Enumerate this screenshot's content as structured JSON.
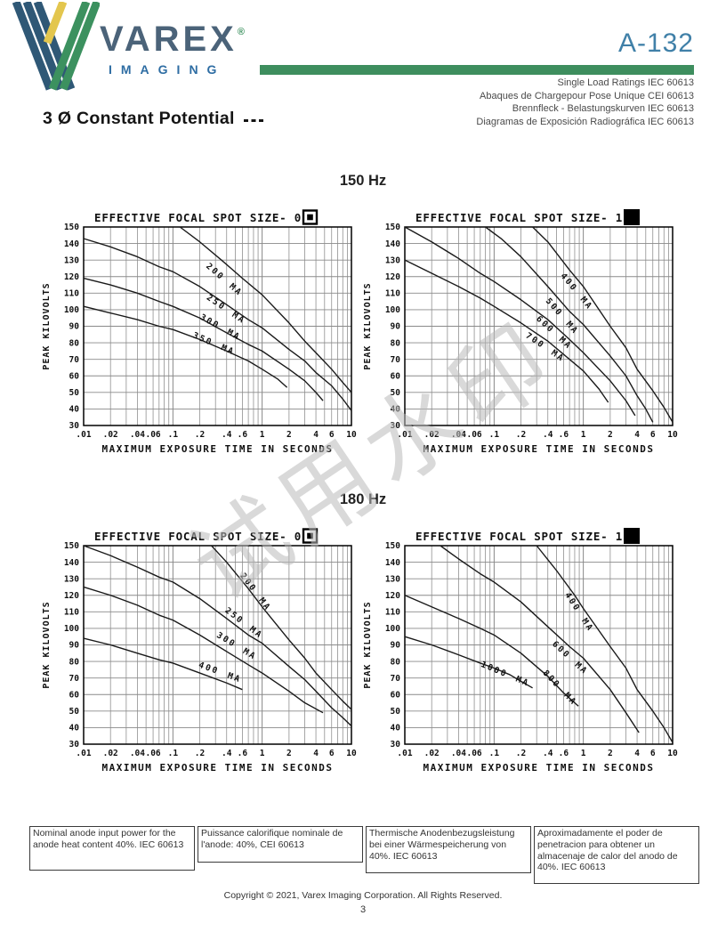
{
  "header": {
    "brand": "VAREX",
    "brand_registered": "®",
    "brand_sub": "IMAGING",
    "doc_number": "A-132",
    "subtitle_lines": [
      "Single Load Ratings IEC 60613",
      "Abaques de Chargepour Pose Unique CEI 60613",
      "Brennfleck - Belastungskurven IEC 60613",
      "Diagramas de Exposición Radiográfica IEC 60613"
    ],
    "colors": {
      "brand_blue": "#4b6379",
      "imaging_blue": "#2e6da3",
      "bar_green": "#3e8e5e",
      "doc_blue": "#4080a8",
      "logo_yellow": "#e3c64e",
      "logo_green": "#3c915f",
      "logo_navy": "#2f5876"
    }
  },
  "heading": {
    "title": "3 Ø  Constant Potential"
  },
  "watermark": {
    "text": "试用水印"
  },
  "sections": {
    "row1": "150 Hz",
    "row2": "180 Hz"
  },
  "chart_shared": {
    "xlabel": "MAXIMUM EXPOSURE TIME IN SECONDS",
    "ylabel": "PEAK KILOVOLTS",
    "xscale": "log",
    "xlim": [
      0.01,
      10
    ],
    "ylim": [
      30,
      150
    ],
    "grid": true,
    "x_tick_labels": [
      ".01",
      ".02",
      ".04",
      ".06",
      ".1",
      ".2",
      ".4",
      ".6",
      "1",
      "2",
      "4",
      "6",
      "10"
    ],
    "x_tick_values": [
      0.01,
      0.02,
      0.04,
      0.06,
      0.1,
      0.2,
      0.4,
      0.6,
      1,
      2,
      4,
      6,
      10
    ],
    "y_ticks": [
      150,
      140,
      130,
      120,
      110,
      100,
      90,
      80,
      70,
      60,
      50,
      40,
      30
    ]
  },
  "chart_data": [
    {
      "type": "line",
      "section": "150 Hz",
      "title": "EFFECTIVE FOCAL SPOT SIZE- 0.6",
      "focal_marker": "small-square",
      "series": [
        {
          "name": "200 MA",
          "label_pos": [
            0.36,
            117
          ],
          "points": [
            [
              0.12,
              150
            ],
            [
              0.2,
              141
            ],
            [
              0.35,
              130
            ],
            [
              0.6,
              119
            ],
            [
              1,
              109
            ],
            [
              2,
              92
            ],
            [
              3,
              81
            ],
            [
              4,
              74
            ],
            [
              6,
              64
            ],
            [
              8,
              56
            ],
            [
              10,
              50
            ]
          ]
        },
        {
          "name": "250 MA",
          "label_pos": [
            0.38,
            99
          ],
          "points": [
            [
              0.01,
              143
            ],
            [
              0.02,
              138
            ],
            [
              0.04,
              132
            ],
            [
              0.07,
              126
            ],
            [
              0.1,
              123
            ],
            [
              0.2,
              114
            ],
            [
              0.4,
              103
            ],
            [
              0.7,
              94
            ],
            [
              1,
              89
            ],
            [
              2,
              76
            ],
            [
              3,
              69
            ],
            [
              4,
              62
            ],
            [
              6,
              54
            ],
            [
              8,
              46
            ],
            [
              10,
              39
            ]
          ]
        },
        {
          "name": "300 MA",
          "label_pos": [
            0.33,
            88
          ],
          "points": [
            [
              0.01,
              119
            ],
            [
              0.02,
              115
            ],
            [
              0.04,
              110
            ],
            [
              0.07,
              105
            ],
            [
              0.1,
              102
            ],
            [
              0.2,
              95
            ],
            [
              0.4,
              86
            ],
            [
              0.7,
              79
            ],
            [
              1,
              75
            ],
            [
              2,
              64
            ],
            [
              3,
              57
            ],
            [
              4,
              50
            ],
            [
              4.8,
              45
            ]
          ]
        },
        {
          "name": "350 MA",
          "label_pos": [
            0.28,
            78
          ],
          "points": [
            [
              0.01,
              102
            ],
            [
              0.02,
              98
            ],
            [
              0.04,
              94
            ],
            [
              0.07,
              90
            ],
            [
              0.1,
              88
            ],
            [
              0.2,
              82
            ],
            [
              0.4,
              75
            ],
            [
              0.7,
              69
            ],
            [
              1,
              64
            ],
            [
              1.5,
              58
            ],
            [
              1.9,
              53
            ]
          ]
        }
      ]
    },
    {
      "type": "line",
      "section": "150 Hz",
      "title": "EFFECTIVE FOCAL SPOT SIZE- 1.2",
      "focal_marker": "large-square",
      "series": [
        {
          "name": "400 MA",
          "label_pos": [
            0.8,
            110
          ],
          "points": [
            [
              0.27,
              150
            ],
            [
              0.4,
              141
            ],
            [
              0.7,
              124
            ],
            [
              1,
              114
            ],
            [
              2,
              90
            ],
            [
              3,
              77
            ],
            [
              4,
              64
            ],
            [
              6,
              51
            ],
            [
              8,
              41
            ],
            [
              10,
              32
            ]
          ]
        },
        {
          "name": "500 MA",
          "label_pos": [
            0.55,
            95
          ],
          "points": [
            [
              0.08,
              150
            ],
            [
              0.12,
              143
            ],
            [
              0.2,
              132
            ],
            [
              0.4,
              114
            ],
            [
              0.7,
              99
            ],
            [
              1,
              91
            ],
            [
              2,
              72
            ],
            [
              3,
              60
            ],
            [
              4,
              48
            ],
            [
              5,
              40
            ],
            [
              6,
              32
            ]
          ]
        },
        {
          "name": "600 MA",
          "label_pos": [
            0.45,
            85
          ],
          "points": [
            [
              0.01,
              150
            ],
            [
              0.02,
              141
            ],
            [
              0.04,
              131
            ],
            [
              0.07,
              122
            ],
            [
              0.1,
              117
            ],
            [
              0.2,
              106
            ],
            [
              0.4,
              94
            ],
            [
              0.7,
              82
            ],
            [
              1,
              74
            ],
            [
              2,
              57
            ],
            [
              3,
              45
            ],
            [
              3.8,
              36
            ]
          ]
        },
        {
          "name": "700 MA",
          "label_pos": [
            0.36,
            76
          ],
          "points": [
            [
              0.01,
              130
            ],
            [
              0.02,
              122
            ],
            [
              0.04,
              114
            ],
            [
              0.07,
              107
            ],
            [
              0.1,
              102
            ],
            [
              0.2,
              92
            ],
            [
              0.4,
              81
            ],
            [
              0.7,
              70
            ],
            [
              1,
              63
            ],
            [
              1.5,
              52
            ],
            [
              1.9,
              44
            ]
          ]
        }
      ]
    },
    {
      "type": "line",
      "section": "180 Hz",
      "title": "EFFECTIVE FOCAL SPOT SIZE- 0.6",
      "focal_marker": "small-square",
      "series": [
        {
          "name": "200 MA",
          "label_pos": [
            0.8,
            121
          ],
          "points": [
            [
              0.27,
              150
            ],
            [
              0.4,
              140
            ],
            [
              0.7,
              124
            ],
            [
              1,
              113
            ],
            [
              2,
              93
            ],
            [
              3,
              82
            ],
            [
              4,
              73
            ],
            [
              6,
              63
            ],
            [
              8,
              56
            ],
            [
              10,
              51
            ]
          ]
        },
        {
          "name": "250 MA",
          "label_pos": [
            0.6,
            102
          ],
          "points": [
            [
              0.01,
              150
            ],
            [
              0.02,
              144
            ],
            [
              0.04,
              137
            ],
            [
              0.07,
              131
            ],
            [
              0.1,
              128
            ],
            [
              0.2,
              118
            ],
            [
              0.4,
              106
            ],
            [
              0.7,
              96
            ],
            [
              1,
              91
            ],
            [
              2,
              77
            ],
            [
              3,
              69
            ],
            [
              4,
              62
            ],
            [
              6,
              52
            ],
            [
              8,
              46
            ],
            [
              10,
              41
            ]
          ]
        },
        {
          "name": "300 MA",
          "label_pos": [
            0.5,
            88
          ],
          "points": [
            [
              0.01,
              125
            ],
            [
              0.02,
              120
            ],
            [
              0.04,
              114
            ],
            [
              0.07,
              108
            ],
            [
              0.1,
              105
            ],
            [
              0.2,
              96
            ],
            [
              0.4,
              86
            ],
            [
              0.7,
              78
            ],
            [
              1,
              73
            ],
            [
              2,
              62
            ],
            [
              3,
              55
            ],
            [
              4.8,
              49
            ]
          ]
        },
        {
          "name": "400 MA",
          "label_pos": [
            0.33,
            72
          ],
          "points": [
            [
              0.01,
              94
            ],
            [
              0.02,
              90
            ],
            [
              0.04,
              85
            ],
            [
              0.07,
              81
            ],
            [
              0.1,
              79
            ],
            [
              0.2,
              73
            ],
            [
              0.4,
              67
            ],
            [
              0.6,
              63
            ]
          ]
        }
      ]
    },
    {
      "type": "line",
      "section": "180 Hz",
      "title": "EFFECTIVE FOCAL SPOT SIZE- 1.2",
      "focal_marker": "large-square",
      "series": [
        {
          "name": "400 MA",
          "label_pos": [
            0.85,
            109
          ],
          "points": [
            [
              0.3,
              150
            ],
            [
              0.5,
              135
            ],
            [
              0.8,
              120
            ],
            [
              1,
              112
            ],
            [
              2,
              89
            ],
            [
              3,
              76
            ],
            [
              4,
              63
            ],
            [
              6,
              50
            ],
            [
              8,
              40
            ],
            [
              10,
              31
            ]
          ]
        },
        {
          "name": "600 MA",
          "label_pos": [
            0.68,
            81
          ],
          "points": [
            [
              0.025,
              150
            ],
            [
              0.04,
              142
            ],
            [
              0.07,
              133
            ],
            [
              0.1,
              128
            ],
            [
              0.2,
              116
            ],
            [
              0.4,
              101
            ],
            [
              0.7,
              89
            ],
            [
              1,
              82
            ],
            [
              2,
              63
            ],
            [
              3,
              49
            ],
            [
              4.2,
              37
            ]
          ]
        },
        {
          "name": "800 MA",
          "label_pos": [
            0.52,
            63
          ],
          "points": [
            [
              0.01,
              120
            ],
            [
              0.02,
              113
            ],
            [
              0.04,
              106
            ],
            [
              0.07,
              100
            ],
            [
              0.1,
              96
            ],
            [
              0.2,
              85
            ],
            [
              0.4,
              71
            ],
            [
              0.6,
              61
            ],
            [
              0.88,
              53
            ]
          ]
        },
        {
          "name": "1000 MA",
          "label_pos": [
            0.13,
            71
          ],
          "points": [
            [
              0.01,
              95
            ],
            [
              0.02,
              90
            ],
            [
              0.04,
              84
            ],
            [
              0.07,
              79
            ],
            [
              0.1,
              76
            ],
            [
              0.15,
              72
            ],
            [
              0.2,
              68
            ],
            [
              0.27,
              64
            ]
          ]
        }
      ]
    }
  ],
  "footnotes": [
    "Nominal anode input power for the anode heat content 40%. IEC 60613",
    "Puissance calorifique nominale de l'anode: 40%, CEI 60613",
    "Thermische Anodenbezugsleistung bei einer Wärmespeicherung von 40%. IEC 60613",
    "Aproximadamente el poder de penetracion para obtener un almacenaje de calor del anodo de 40%. IEC 60613"
  ],
  "footer": {
    "copyright": "Copyright © 2021, Varex Imaging Corporation.  All Rights Reserved.",
    "page_number": "3"
  }
}
